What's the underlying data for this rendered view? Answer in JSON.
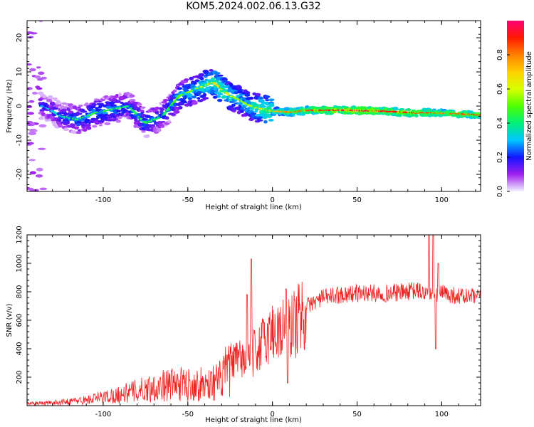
{
  "figure": {
    "title": "KOM5.2024.002.06.13.G32"
  },
  "chart_data": [
    {
      "type": "heatmap",
      "xlabel": "Height of straight line (km)",
      "ylabel": "Frequency (Hz)",
      "xlim": [
        -145,
        123
      ],
      "ylim": [
        -25,
        25
      ],
      "xticks": [
        -100,
        -50,
        0,
        50,
        100
      ],
      "yticks": [
        -20,
        -10,
        0,
        10,
        20
      ],
      "colorbar": {
        "label": "Normalized spectral amplitude",
        "range": [
          0,
          1
        ],
        "ticks": [
          "0.0",
          "0.2",
          "0.4",
          "0.6",
          "0.8"
        ],
        "colors": [
          "#f2f2ff",
          "#a020f0",
          "#1414ff",
          "#00c8ff",
          "#00f07a",
          "#50ff00",
          "#d8ff00",
          "#ffd000",
          "#ff8000",
          "#ff1a00",
          "#ff0078"
        ]
      },
      "ridge": {
        "x": [
          -135,
          -125,
          -115,
          -105,
          -95,
          -85,
          -75,
          -65,
          -55,
          -45,
          -40,
          -35,
          -30,
          -25,
          -20,
          -15,
          -10,
          -5,
          0,
          10,
          20,
          30,
          40,
          50,
          60,
          70,
          80,
          90,
          100,
          110,
          123
        ],
        "freq": [
          0,
          -3,
          -4,
          -2,
          -1,
          0,
          -5,
          -3,
          3,
          5,
          6,
          7,
          5,
          3,
          2,
          0.5,
          -0.5,
          -1,
          -1.5,
          -1.8,
          -1.3,
          -1.2,
          -1.2,
          -1.3,
          -1.4,
          -1.6,
          -1.9,
          -2,
          -2.1,
          -2.3,
          -2.6
        ],
        "amplitude": [
          0.3,
          0.35,
          0.45,
          0.45,
          0.45,
          0.4,
          0.45,
          0.4,
          0.5,
          0.55,
          0.6,
          0.65,
          0.7,
          0.6,
          0.55,
          0.55,
          0.6,
          0.65,
          0.7,
          0.8,
          0.85,
          0.9,
          0.95,
          0.95,
          0.95,
          0.9,
          0.9,
          0.85,
          0.8,
          0.85,
          0.85
        ]
      }
    },
    {
      "type": "line",
      "xlabel": "Height of straight line (km)",
      "ylabel": "SNR (v/v)",
      "xlim": [
        -145,
        123
      ],
      "ylim": [
        0,
        1200
      ],
      "xticks": [
        -100,
        -50,
        0,
        50,
        100
      ],
      "yticks": [
        200,
        400,
        600,
        800,
        1000,
        1200
      ],
      "color": "#ee2222",
      "trend": {
        "x": [
          -145,
          -130,
          -110,
          -90,
          -70,
          -60,
          -50,
          -40,
          -30,
          -25,
          -20,
          -15,
          -10,
          -5,
          0,
          5,
          10,
          15,
          20,
          30,
          40,
          50,
          60,
          70,
          80,
          85,
          90,
          95,
          100,
          110,
          123
        ],
        "y": [
          15,
          20,
          40,
          80,
          130,
          150,
          150,
          150,
          180,
          300,
          320,
          330,
          380,
          450,
          520,
          530,
          550,
          600,
          700,
          760,
          780,
          790,
          790,
          790,
          800,
          810,
          790,
          780,
          790,
          770,
          760
        ]
      },
      "peaks": [
        {
          "x": -12.5,
          "y": 1030
        },
        {
          "x": -15,
          "y": 780
        },
        {
          "x": 8,
          "y": 820
        },
        {
          "x": 9,
          "y": 160
        },
        {
          "x": 92.5,
          "y": 1200
        },
        {
          "x": 95,
          "y": 1200
        },
        {
          "x": 96.5,
          "y": 400
        },
        {
          "x": 98,
          "y": 1000
        }
      ]
    }
  ]
}
